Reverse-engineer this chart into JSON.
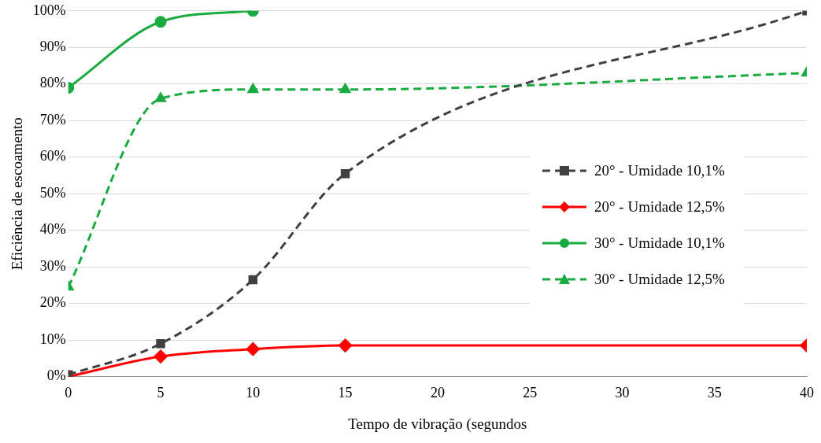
{
  "chart_data": {
    "type": "line",
    "xlabel": "Tempo de vibração (segundos",
    "ylabel": "Eficiência de escoamento",
    "x": [
      0,
      5,
      10,
      15,
      40
    ],
    "xlim": [
      0,
      40
    ],
    "xticks": [
      0,
      5,
      10,
      15,
      20,
      25,
      30,
      35,
      40
    ],
    "ylim": [
      0,
      100
    ],
    "yticks": [
      {
        "value": 0,
        "label": "0%"
      },
      {
        "value": 10,
        "label": "10%"
      },
      {
        "value": 20,
        "label": "20%"
      },
      {
        "value": 30,
        "label": "30%"
      },
      {
        "value": 40,
        "label": "40%"
      },
      {
        "value": 50,
        "label": "50%"
      },
      {
        "value": 60,
        "label": "60%"
      },
      {
        "value": 70,
        "label": "70%"
      },
      {
        "value": 80,
        "label": "80%"
      },
      {
        "value": 90,
        "label": "90%"
      },
      {
        "value": 100,
        "label": "100%"
      }
    ],
    "grid": "y",
    "legend": "right",
    "series": [
      {
        "name": "20° - Umidade 10,1%",
        "color": "#404040",
        "marker": "square",
        "line_style": "dashed",
        "values": [
          0.5,
          9,
          26.5,
          55.5,
          100
        ]
      },
      {
        "name": "20° - Umidade 12,5%",
        "color": "#ff0000",
        "marker": "diamond",
        "line_style": "solid",
        "values": [
          0,
          5.5,
          7.5,
          8.5,
          8.5
        ]
      },
      {
        "name": "30° - Umidade 10,1%",
        "color": "#1aab40",
        "marker": "circle",
        "line_style": "solid",
        "values": [
          79,
          97,
          100,
          null,
          null
        ]
      },
      {
        "name": "30° - Umidade 12,5%",
        "color": "#1aab40",
        "marker": "triangle",
        "line_style": "dashed",
        "values": [
          24.5,
          76,
          78.5,
          78.5,
          83
        ]
      }
    ]
  }
}
